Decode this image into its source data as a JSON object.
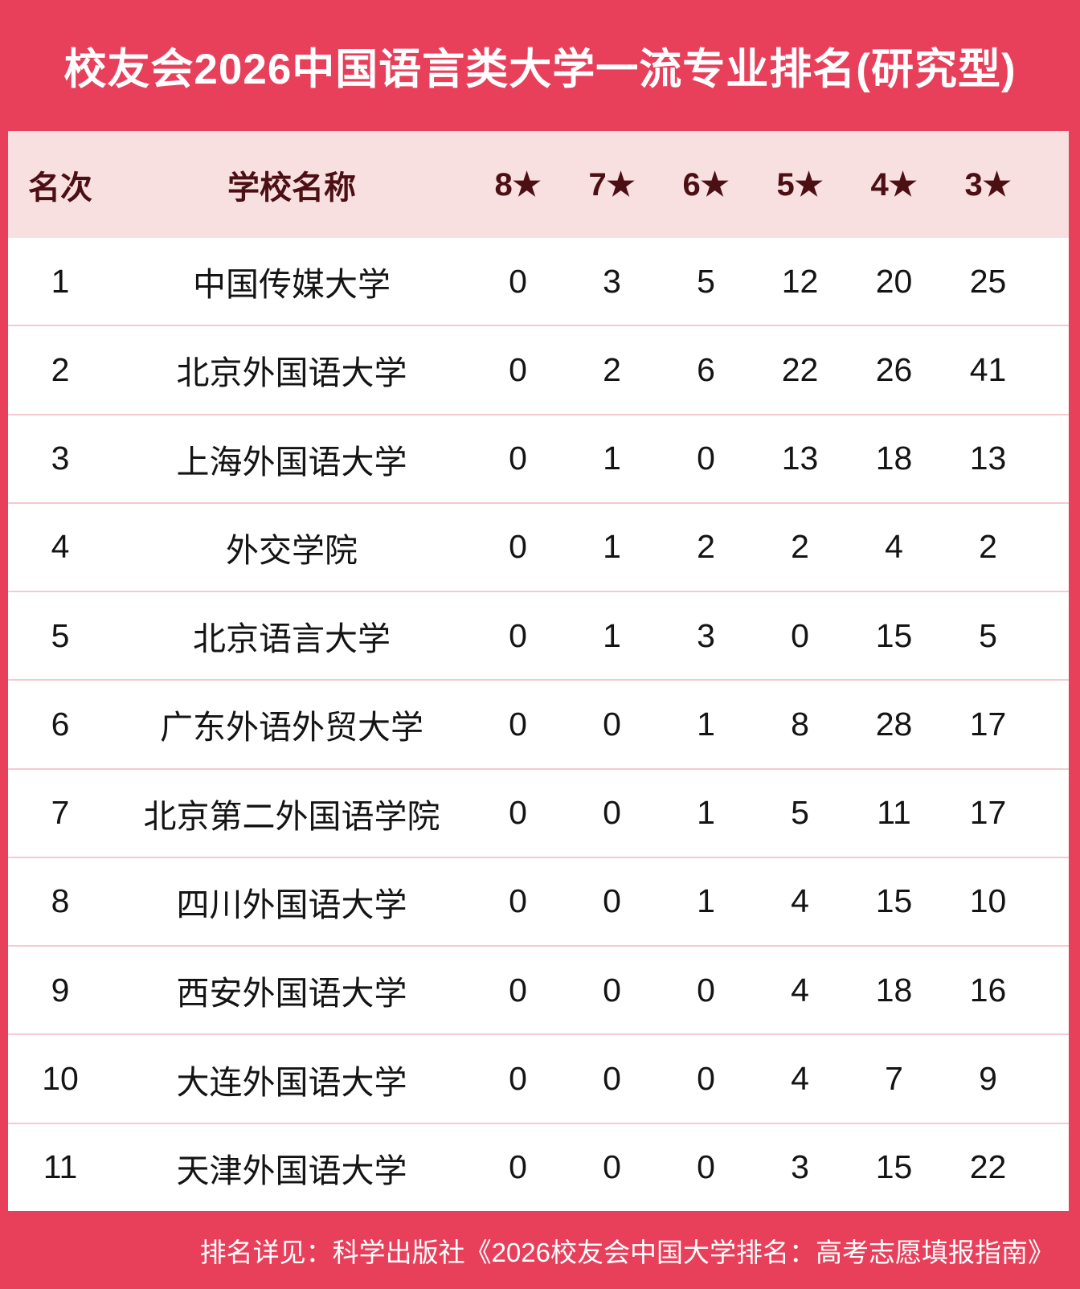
{
  "title": "校友会2026中国语言类大学一流专业排名(研究型)",
  "footer_note": "排名详见：科学出版社《2026校友会中国大学排名：高考志愿填报指南》",
  "colors": {
    "frame_red": "#E8405B",
    "header_bg": "#F8E0E0",
    "header_text": "#4B0F14",
    "body_bg": "#FFFFFF",
    "body_text": "#141414",
    "divider_pink": "#F5C9D0",
    "title_text": "#FFFFFF"
  },
  "chart_data": {
    "type": "table",
    "title": "校友会2026中国语言类大学一流专业排名(研究型)",
    "columns": [
      "名次",
      "学校名称",
      "8★",
      "7★",
      "6★",
      "5★",
      "4★",
      "3★"
    ],
    "rows": [
      [
        "1",
        "中国传媒大学",
        "0",
        "3",
        "5",
        "12",
        "20",
        "25"
      ],
      [
        "2",
        "北京外国语大学",
        "0",
        "2",
        "6",
        "22",
        "26",
        "41"
      ],
      [
        "3",
        "上海外国语大学",
        "0",
        "1",
        "0",
        "13",
        "18",
        "13"
      ],
      [
        "4",
        "外交学院",
        "0",
        "1",
        "2",
        "2",
        "4",
        "2"
      ],
      [
        "5",
        "北京语言大学",
        "0",
        "1",
        "3",
        "0",
        "15",
        "5"
      ],
      [
        "6",
        "广东外语外贸大学",
        "0",
        "0",
        "1",
        "8",
        "28",
        "17"
      ],
      [
        "7",
        "北京第二外国语学院",
        "0",
        "0",
        "1",
        "5",
        "11",
        "17"
      ],
      [
        "8",
        "四川外国语大学",
        "0",
        "0",
        "1",
        "4",
        "15",
        "10"
      ],
      [
        "9",
        "西安外国语大学",
        "0",
        "0",
        "0",
        "4",
        "18",
        "16"
      ],
      [
        "10",
        "大连外国语大学",
        "0",
        "0",
        "0",
        "4",
        "7",
        "9"
      ],
      [
        "11",
        "天津外国语大学",
        "0",
        "0",
        "0",
        "3",
        "15",
        "22"
      ]
    ],
    "footer": "排名详见：科学出版社《2026校友会中国大学排名：高考志愿填报指南》"
  }
}
